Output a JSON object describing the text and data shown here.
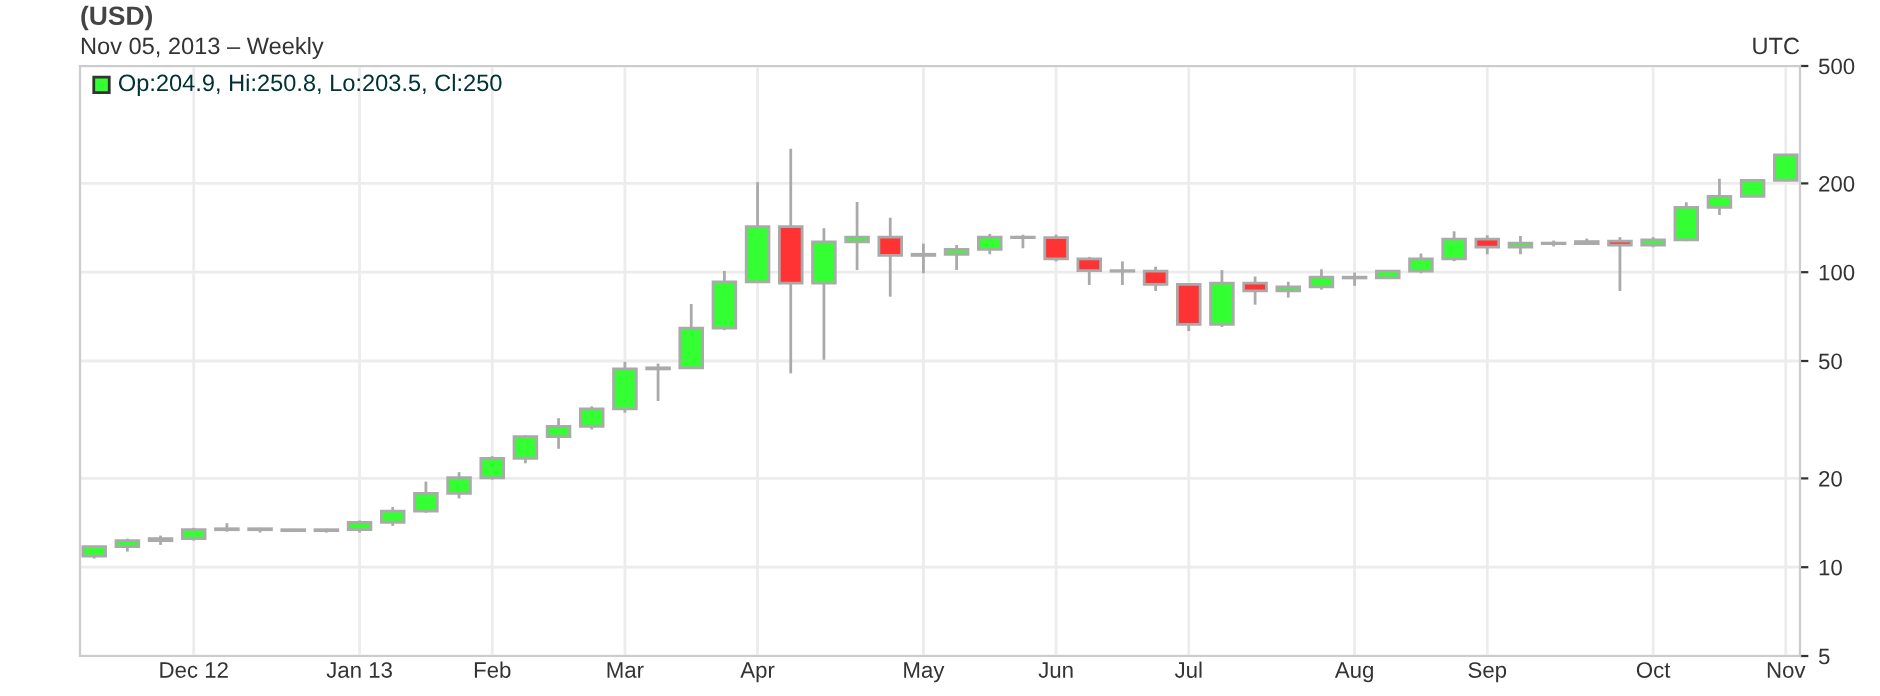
{
  "chart_data": {
    "type": "candlestick",
    "title": "(USD)",
    "subtitle": "Nov 05, 2013 – Weekly",
    "annotations": [
      "UTC",
      "Op:204.9, Hi:250.8, Lo:203.5, Cl:250"
    ],
    "x": [
      "2012-11-12",
      "2012-11-19",
      "2012-11-26",
      "2012-12-03",
      "2012-12-10",
      "2012-12-17",
      "2012-12-24",
      "2012-12-31",
      "2013-01-07",
      "2013-01-14",
      "2013-01-21",
      "2013-01-28",
      "2013-02-04",
      "2013-02-11",
      "2013-02-18",
      "2013-02-25",
      "2013-03-04",
      "2013-03-11",
      "2013-03-18",
      "2013-03-25",
      "2013-04-01",
      "2013-04-08",
      "2013-04-15",
      "2013-04-22",
      "2013-04-29",
      "2013-05-06",
      "2013-05-13",
      "2013-05-20",
      "2013-05-27",
      "2013-06-03",
      "2013-06-10",
      "2013-06-17",
      "2013-06-24",
      "2013-07-01",
      "2013-07-08",
      "2013-07-15",
      "2013-07-22",
      "2013-07-29",
      "2013-08-05",
      "2013-08-12",
      "2013-08-19",
      "2013-08-26",
      "2013-09-02",
      "2013-09-09",
      "2013-09-16",
      "2013-09-23",
      "2013-09-30",
      "2013-10-07",
      "2013-10-14",
      "2013-10-21",
      "2013-10-28",
      "2013-11-04"
    ],
    "ohlc": [
      [
        10.9,
        11.8,
        10.7,
        11.75
      ],
      [
        11.75,
        12.5,
        11.3,
        12.3
      ],
      [
        12.3,
        12.8,
        11.9,
        12.5
      ],
      [
        12.5,
        13.6,
        12.3,
        13.4
      ],
      [
        13.4,
        14.1,
        13.2,
        13.5
      ],
      [
        13.5,
        13.6,
        13.1,
        13.4
      ],
      [
        13.4,
        13.5,
        13.2,
        13.3
      ],
      [
        13.3,
        13.5,
        13.1,
        13.4
      ],
      [
        13.4,
        14.4,
        13.1,
        14.2
      ],
      [
        14.2,
        16.0,
        13.8,
        15.5
      ],
      [
        15.5,
        19.5,
        15.3,
        17.8
      ],
      [
        17.8,
        21.0,
        17.1,
        20.1
      ],
      [
        20.1,
        23.8,
        19.8,
        23.4
      ],
      [
        23.4,
        28.0,
        22.5,
        27.7
      ],
      [
        27.7,
        32.0,
        25.2,
        30.0
      ],
      [
        30.0,
        35.1,
        29.3,
        34.4
      ],
      [
        34.4,
        49.7,
        33.4,
        47.0
      ],
      [
        47.0,
        49.0,
        36.6,
        47.4
      ],
      [
        47.4,
        78,
        47,
        64.6
      ],
      [
        64.6,
        101,
        63.6,
        92.8
      ],
      [
        92.8,
        202,
        92,
        142.6
      ],
      [
        142.6,
        262,
        45.4,
        91.9
      ],
      [
        91.9,
        141,
        50.5,
        126.8
      ],
      [
        126.8,
        173,
        101.7,
        131.5
      ],
      [
        131.5,
        153,
        82.6,
        114
      ],
      [
        114,
        125,
        99.2,
        115
      ],
      [
        115,
        123.6,
        101.7,
        119.4
      ],
      [
        119.4,
        134.9,
        115,
        131.5
      ],
      [
        131.5,
        134,
        120.5,
        131
      ],
      [
        131,
        134,
        108.8,
        111
      ],
      [
        111,
        112.7,
        90.5,
        101.2
      ],
      [
        101.2,
        108.8,
        90.5,
        100.8
      ],
      [
        100.8,
        104.4,
        86.4,
        91
      ],
      [
        91,
        91,
        63.2,
        66.6
      ],
      [
        66.6,
        101.7,
        65.2,
        91.9
      ],
      [
        91.9,
        96.7,
        77.6,
        86.4
      ],
      [
        86.4,
        92.8,
        82,
        89.1
      ],
      [
        89.1,
        102.3,
        87.3,
        96.2
      ],
      [
        96.2,
        99.7,
        89.9,
        95.6
      ],
      [
        95.6,
        101.7,
        94.8,
        100.8
      ],
      [
        100.8,
        115.7,
        99.2,
        111
      ],
      [
        111,
        137.6,
        109,
        129.4
      ],
      [
        129.4,
        133.4,
        115,
        121.7
      ],
      [
        121.7,
        132.7,
        115,
        125.5
      ],
      [
        125.5,
        128,
        122.3,
        125
      ],
      [
        125,
        130,
        124,
        127
      ],
      [
        127.4,
        131.5,
        86.4,
        123.6
      ],
      [
        123.6,
        131.5,
        121.6,
        128.8
      ],
      [
        128.8,
        172.6,
        127.4,
        166
      ],
      [
        166,
        207.5,
        156.3,
        180.6
      ],
      [
        180.6,
        206.5,
        180,
        204.9
      ],
      [
        204.9,
        250.8,
        203.5,
        250
      ]
    ],
    "colors": [
      "#33ff33",
      "#33ff33",
      "#33ff33",
      "#33ff33",
      "#33ff33",
      "#ff3333",
      "#ff3333",
      "#33ff33",
      "#33ff33",
      "#33ff33",
      "#33ff33",
      "#33ff33",
      "#33ff33",
      "#33ff33",
      "#33ff33",
      "#33ff33",
      "#33ff33",
      "#33ff33",
      "#33ff33",
      "#33ff33",
      "#33ff33",
      "#ff3333",
      "#33ff33",
      "#33ff33",
      "#ff3333",
      "#33ff33",
      "#33ff33",
      "#33ff33",
      "#ff3333",
      "#ff3333",
      "#ff3333",
      "#ff3333",
      "#ff3333",
      "#ff3333",
      "#33ff33",
      "#ff3333",
      "#33ff33",
      "#33ff33",
      "#ff3333",
      "#33ff33",
      "#33ff33",
      "#33ff33",
      "#ff3333",
      "#33ff33",
      "#ff3333",
      "#33ff33",
      "#ff3333",
      "#33ff33",
      "#33ff33",
      "#33ff33",
      "#33ff33",
      "#33ff33"
    ],
    "log": true,
    "ylim": [
      5,
      500
    ],
    "yticks": [
      5,
      10,
      20,
      50,
      100,
      200,
      500
    ],
    "xlim": [
      "2012-11-09",
      "2013-11-07"
    ],
    "xticks": [
      {
        "value": "2012-12-03",
        "label": "Dec 12"
      },
      {
        "value": "2013-01-07",
        "label": "Jan 13"
      },
      {
        "value": "2013-02-04",
        "label": "Feb"
      },
      {
        "value": "2013-03-04",
        "label": "Mar"
      },
      {
        "value": "2013-04-01",
        "label": "Apr"
      },
      {
        "value": "2013-05-06",
        "label": "May"
      },
      {
        "value": "2013-06-03",
        "label": "Jun"
      },
      {
        "value": "2013-07-01",
        "label": "Jul"
      },
      {
        "value": "2013-08-05",
        "label": "Aug"
      },
      {
        "value": "2013-09-02",
        "label": "Sep"
      },
      {
        "value": "2013-10-07",
        "label": "Oct"
      },
      {
        "value": "2013-11-04",
        "label": "Nov"
      }
    ],
    "grid": true
  }
}
